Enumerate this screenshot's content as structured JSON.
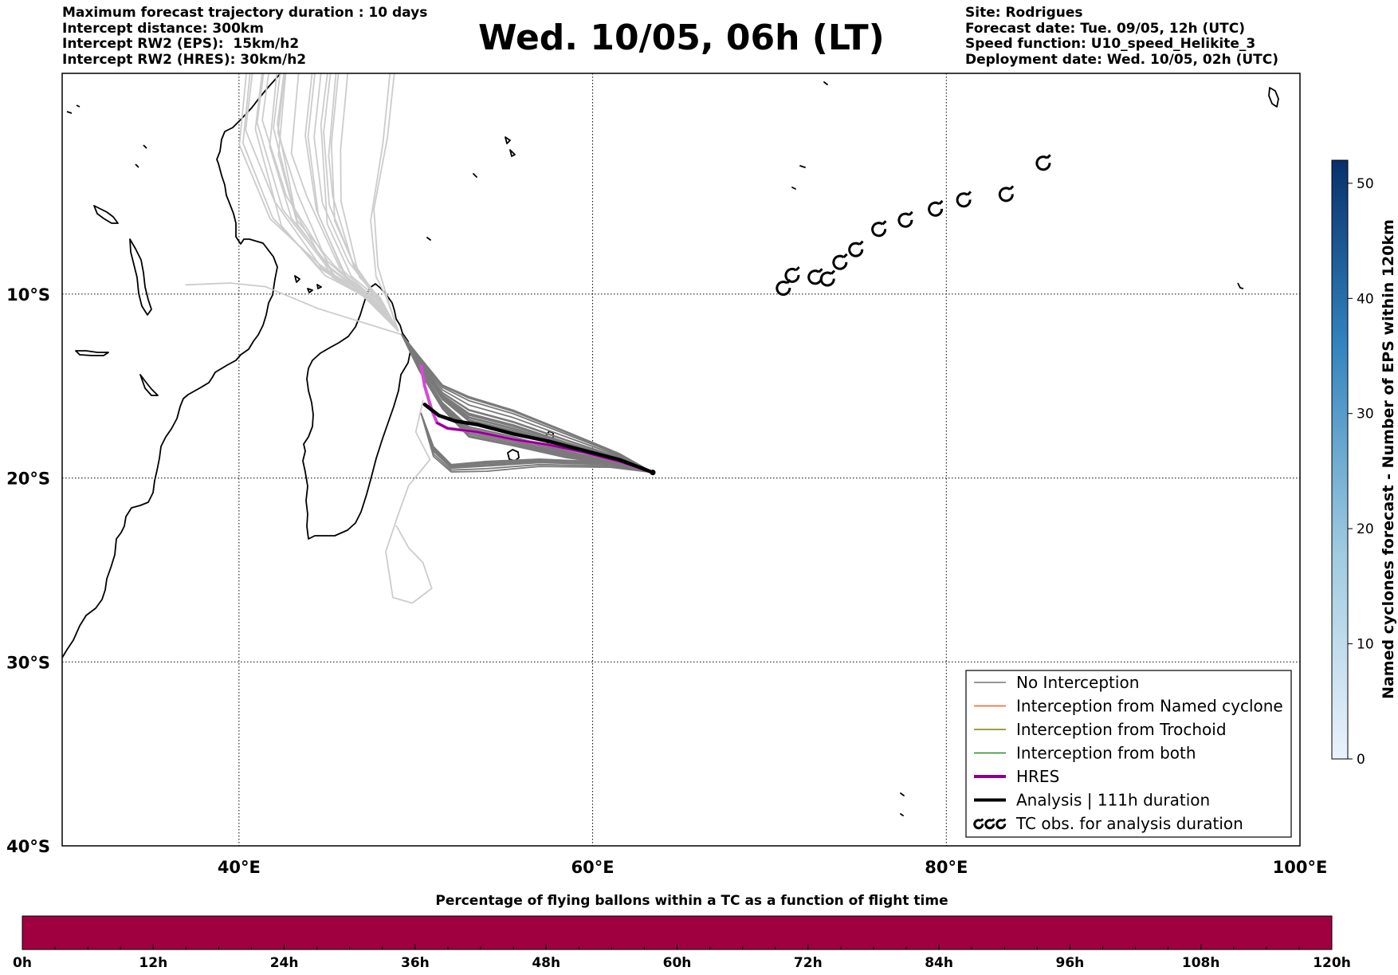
{
  "header": {
    "left_lines": [
      "Maximum forecast trajectory duration : 10 days",
      "Intercept distance: 300km",
      "Intercept RW2 (EPS):  15km/h2",
      "Intercept RW2 (HRES): 30km/h2"
    ],
    "title": "Wed. 10/05, 06h (LT)",
    "right_lines": [
      "Site: Rodrigues",
      "Forecast date: Tue. 09/05, 12h (UTC)",
      "Speed function: U10_speed_Helikite_3",
      "Deployment date: Wed. 10/05, 02h (UTC)"
    ]
  },
  "chart_data": {
    "type": "map",
    "lon_range": [
      30,
      100
    ],
    "lat_range": [
      -40,
      2
    ],
    "grid": true,
    "x_ticks": [
      "40°E",
      "60°E",
      "80°E",
      "100°E"
    ],
    "y_ticks": [
      "10°S",
      "20°S",
      "30°S",
      "40°S"
    ],
    "launch_site": {
      "lon": 63.4,
      "lat": -19.7
    },
    "analysis": [
      [
        63.4,
        -19.7
      ],
      [
        61.5,
        -19.0
      ],
      [
        59.5,
        -18.5
      ],
      [
        57.5,
        -18.0
      ],
      [
        55.5,
        -17.6
      ],
      [
        53.5,
        -17.1
      ],
      [
        52.2,
        -16.9
      ],
      [
        51.3,
        -16.6
      ],
      [
        50.5,
        -16.0
      ]
    ],
    "hres": [
      [
        63.4,
        -19.7
      ],
      [
        61.5,
        -19.1
      ],
      [
        59.5,
        -18.6
      ],
      [
        57.5,
        -18.2
      ],
      [
        55.5,
        -17.9
      ],
      [
        53.5,
        -17.5
      ],
      [
        51.8,
        -17.3
      ],
      [
        51.2,
        -17.0
      ],
      [
        50.9,
        -16.3
      ],
      [
        50.5,
        -15.0
      ],
      [
        50.3,
        -13.9
      ]
    ],
    "tc_obs": [
      [
        70.8,
        -9.7
      ],
      [
        71.3,
        -9.0
      ],
      [
        72.6,
        -9.1
      ],
      [
        73.3,
        -9.2
      ],
      [
        74.0,
        -8.3
      ],
      [
        74.9,
        -7.6
      ],
      [
        76.2,
        -6.5
      ],
      [
        77.7,
        -6.0
      ],
      [
        79.4,
        -5.4
      ],
      [
        81.0,
        -4.9
      ],
      [
        83.4,
        -4.6
      ],
      [
        85.5,
        -2.9
      ]
    ],
    "legend": [
      {
        "label": "No Interception",
        "color": "#777777",
        "width": 1.5
      },
      {
        "label": "Interception from Named cyclone",
        "color": "#ff5a1e",
        "width": 1.5
      },
      {
        "label": "Interception from Trochoid",
        "color": "#808000",
        "width": 1.5
      },
      {
        "label": "Interception from both",
        "color": "#228b22",
        "width": 1.5
      },
      {
        "label": "HRES",
        "color": "#8b008b",
        "width": 4
      },
      {
        "label": "Analysis | 111h duration",
        "color": "#000000",
        "width": 4
      },
      {
        "label": "TC obs. for analysis duration",
        "symbol": "cyclone-symbols"
      }
    ],
    "right_colorbar": {
      "label": "Named cyclones forecast - Number of EPS within 120km",
      "ticks": [
        0,
        10,
        20,
        30,
        40,
        50
      ],
      "max": 52,
      "colors": [
        "#e8f1fb",
        "#08306b"
      ]
    },
    "bottom_bar": {
      "title": "Percentage of flying ballons within a TC as a function of flight time",
      "ticks": [
        "0h",
        "12h",
        "24h",
        "36h",
        "48h",
        "60h",
        "72h",
        "84h",
        "96h",
        "108h",
        "120h"
      ],
      "color": "#a00040"
    }
  }
}
